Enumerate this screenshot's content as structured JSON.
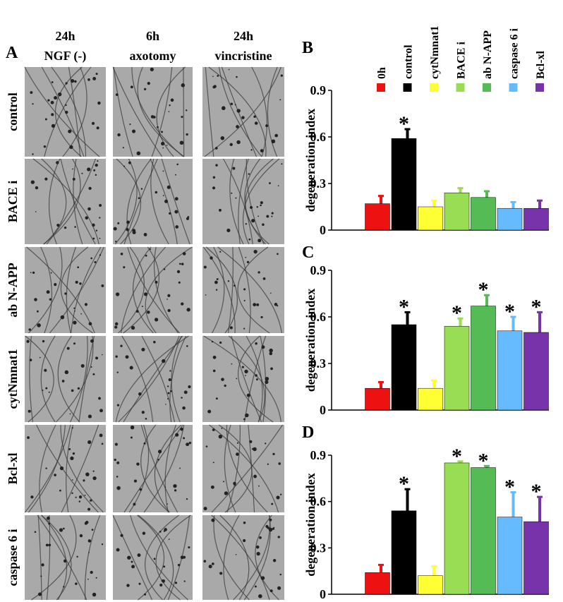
{
  "panel_a": {
    "label": "A",
    "columns": [
      [
        "24h",
        "NGF (-)"
      ],
      [
        "6h",
        "axotomy"
      ],
      [
        "24h",
        "vincristine"
      ]
    ],
    "rows": [
      "control",
      "BACE i",
      "ab N-APP",
      "cytNmnat1",
      "Bcl-xl",
      "caspase 6 i"
    ]
  },
  "chart_data": [
    {
      "type": "bar",
      "panel": "B",
      "y_label": "degeneration index",
      "legend": true,
      "categories": [
        "0h",
        "control",
        "cytNmnat1",
        "BACE i",
        "ab N-APP",
        "caspase 6 i",
        "Bcl-xl"
      ],
      "colors": [
        "#ee1111",
        "#000000",
        "#ffff33",
        "#99dd55",
        "#55bb55",
        "#66bbff",
        "#7733aa"
      ],
      "values": [
        0.17,
        0.59,
        0.15,
        0.24,
        0.21,
        0.14,
        0.14
      ],
      "errors": [
        0.05,
        0.06,
        0.04,
        0.03,
        0.04,
        0.04,
        0.05
      ],
      "markers": [
        null,
        "*",
        null,
        null,
        null,
        null,
        null
      ],
      "ylim": [
        0,
        0.9
      ],
      "yticks": [
        0,
        0.3,
        0.6,
        0.9
      ]
    },
    {
      "type": "bar",
      "panel": "C",
      "y_label": "degeneration index",
      "legend": false,
      "categories": [
        "0h",
        "control",
        "cytNmnat1",
        "BACE i",
        "ab N-APP",
        "caspase 6 i",
        "Bcl-xl"
      ],
      "colors": [
        "#ee1111",
        "#000000",
        "#ffff33",
        "#99dd55",
        "#55bb55",
        "#66bbff",
        "#7733aa"
      ],
      "values": [
        0.14,
        0.55,
        0.14,
        0.54,
        0.67,
        0.51,
        0.5
      ],
      "errors": [
        0.04,
        0.08,
        0.05,
        0.05,
        0.07,
        0.09,
        0.13
      ],
      "markers": [
        null,
        "*",
        null,
        "*",
        "*",
        "*",
        "*"
      ],
      "ylim": [
        0,
        0.9
      ],
      "yticks": [
        0,
        0.3,
        0.6,
        0.9
      ]
    },
    {
      "type": "bar",
      "panel": "D",
      "y_label": "degeneration index",
      "legend": false,
      "categories": [
        "0h",
        "control",
        "cytNmnat1",
        "BACE i",
        "ab N-APP",
        "caspase 6 i",
        "Bcl-xl"
      ],
      "colors": [
        "#ee1111",
        "#000000",
        "#ffff33",
        "#99dd55",
        "#55bb55",
        "#66bbff",
        "#7733aa"
      ],
      "values": [
        0.14,
        0.54,
        0.12,
        0.85,
        0.82,
        0.5,
        0.47
      ],
      "errors": [
        0.05,
        0.14,
        0.06,
        0.01,
        0.01,
        0.16,
        0.16
      ],
      "markers": [
        null,
        "*",
        null,
        "*",
        "*",
        "*",
        "*"
      ],
      "ylim": [
        0,
        0.9
      ],
      "yticks": [
        0,
        0.3,
        0.6,
        0.9
      ]
    }
  ]
}
